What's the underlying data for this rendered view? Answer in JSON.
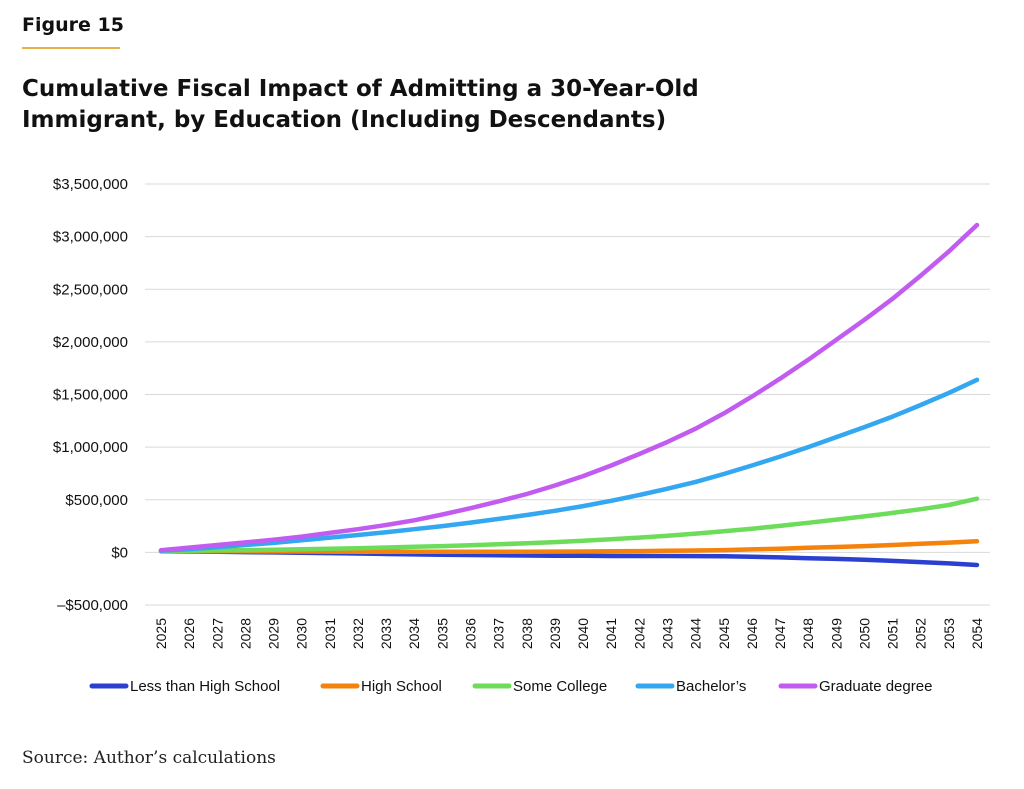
{
  "figure_label": "Figure 15",
  "source": "Source: Author’s calculations",
  "colors": {
    "accent_rule": "#e8b04a",
    "grid": "#d9d9d9"
  },
  "chart_data": {
    "type": "line",
    "title": "Cumulative Fiscal Impact of Admitting a 30-Year-Old Immigrant, by Education (Including Descendants)",
    "title_lines": [
      "Cumulative Fiscal Impact of Admitting a 30-Year-Old",
      "Immigrant, by Education (Including Descendants)"
    ],
    "xlabel": "",
    "ylabel": "",
    "ylim": [
      -500000,
      3500000
    ],
    "yticks": [
      3500000,
      3000000,
      2500000,
      2000000,
      1500000,
      1000000,
      500000,
      0,
      -500000
    ],
    "ytick_labels": [
      "$3,500,000",
      "$3,000,000",
      "$2,500,000",
      "$2,000,000",
      "$1,500,000",
      "$1,000,000",
      "$500,000",
      "$0",
      "–$500,000"
    ],
    "grid": true,
    "legend_position": "bottom",
    "x": [
      "2025",
      "2026",
      "2027",
      "2028",
      "2029",
      "2030",
      "2031",
      "2032",
      "2033",
      "2034",
      "2035",
      "2036",
      "2037",
      "2038",
      "2039",
      "2040",
      "2041",
      "2042",
      "2043",
      "2044",
      "2045",
      "2046",
      "2047",
      "2048",
      "2049",
      "2050",
      "2051",
      "2052",
      "2053",
      "2054"
    ],
    "series": [
      {
        "name": "Less than High School",
        "color": "#2b3fd1",
        "values": [
          10000,
          8000,
          6000,
          3000,
          0,
          -3000,
          -7000,
          -11000,
          -15000,
          -19000,
          -22000,
          -25000,
          -28000,
          -30000,
          -32000,
          -33000,
          -34000,
          -34000,
          -34000,
          -35000,
          -37000,
          -42000,
          -48000,
          -55000,
          -62000,
          -71000,
          -81000,
          -92000,
          -105000,
          -120000
        ]
      },
      {
        "name": "High School",
        "color": "#f5820a",
        "values": [
          12000,
          12000,
          11000,
          10000,
          9000,
          8000,
          7000,
          6000,
          5000,
          5000,
          5000,
          5000,
          5000,
          6000,
          7000,
          8000,
          10000,
          12000,
          15000,
          18000,
          22000,
          28000,
          35000,
          43000,
          51000,
          60000,
          70000,
          81000,
          93000,
          106000
        ]
      },
      {
        "name": "Some College",
        "color": "#6ddc5a",
        "values": [
          15000,
          17000,
          19000,
          22000,
          25000,
          29000,
          34000,
          40000,
          46000,
          53000,
          60000,
          68000,
          77000,
          87000,
          98000,
          110000,
          124000,
          140000,
          158000,
          178000,
          200000,
          225000,
          252000,
          281000,
          311000,
          342000,
          375000,
          410000,
          450000,
          510000
        ]
      },
      {
        "name": "Bachelor’s",
        "color": "#33a7f0",
        "values": [
          15000,
          30000,
          50000,
          70000,
          90000,
          115000,
          140000,
          165000,
          192000,
          220000,
          250000,
          283000,
          318000,
          355000,
          395000,
          440000,
          490000,
          545000,
          605000,
          670000,
          745000,
          825000,
          910000,
          1000000,
          1095000,
          1190000,
          1290000,
          1400000,
          1515000,
          1640000
        ]
      },
      {
        "name": "Graduate degree",
        "color": "#c25cf0",
        "values": [
          20000,
          45000,
          70000,
          95000,
          120000,
          150000,
          185000,
          220000,
          260000,
          305000,
          360000,
          420000,
          485000,
          555000,
          635000,
          725000,
          825000,
          935000,
          1050000,
          1175000,
          1320000,
          1480000,
          1650000,
          1830000,
          2020000,
          2210000,
          2410000,
          2630000,
          2860000,
          3110000
        ]
      }
    ]
  }
}
